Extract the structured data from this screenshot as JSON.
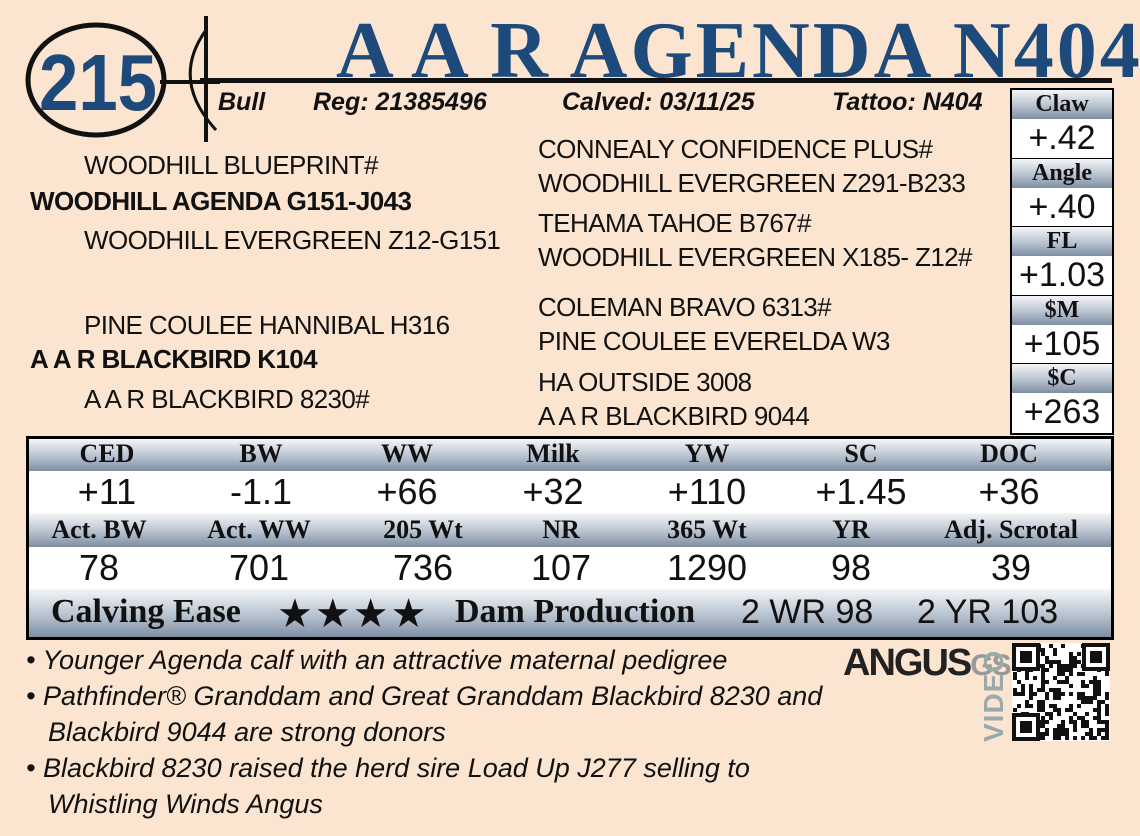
{
  "lot": "215",
  "name": "A A R AGENDA N404",
  "info": {
    "sex": "Bull",
    "reg": "Reg: 21385496",
    "calved": "Calved: 03/11/25",
    "tattoo": "Tattoo: N404"
  },
  "pedigree": {
    "sire_sire": "WOODHILL BLUEPRINT#",
    "sire": "WOODHILL AGENDA G151-J043",
    "sire_dam": "WOODHILL EVERGREEN Z12-G151",
    "dam_sire": "PINE COULEE HANNIBAL H316",
    "dam": "A A R BLACKBIRD K104",
    "dam_dam": "A A R BLACKBIRD 8230#",
    "fourth": [
      "CONNEALY CONFIDENCE PLUS#",
      "WOODHILL EVERGREEN Z291-B233",
      "TEHAMA TAHOE B767#",
      "WOODHILL EVERGREEN X185- Z12#",
      "COLEMAN BRAVO 6313#",
      "PINE COULEE EVERELDA W3",
      "HA OUTSIDE 3008",
      "A A R BLACKBIRD 9044"
    ]
  },
  "side_epds": [
    {
      "label": "Claw",
      "value": "+.42"
    },
    {
      "label": "Angle",
      "value": "+.40"
    },
    {
      "label": "FL",
      "value": "+1.03"
    },
    {
      "label": "$M",
      "value": "+105"
    },
    {
      "label": "$C",
      "value": "+263"
    }
  ],
  "epds": {
    "labels": [
      "CED",
      "BW",
      "WW",
      "Milk",
      "YW",
      "SC",
      "DOC"
    ],
    "values": [
      "+11",
      "-1.1",
      "+66",
      "+32",
      "+110",
      "+1.45",
      "+36"
    ]
  },
  "actuals": {
    "labels": [
      "Act. BW",
      "Act. WW",
      "205 Wt",
      "NR",
      "365 Wt",
      "YR",
      "Adj. Scrotal"
    ],
    "values": [
      "78",
      "701",
      "736",
      "107",
      "1290",
      "98",
      "39"
    ]
  },
  "calving_ease": {
    "label": "Calving Ease",
    "stars": "★★★★"
  },
  "dam_production": {
    "label": "Dam Production",
    "values": [
      "2 WR 98",
      "2 YR 103"
    ]
  },
  "notes": [
    "Younger Agenda calf with an attractive maternal pedigree",
    "Pathfinder®  Granddam and Great Granddam Blackbird 8230 and Blackbird 9044 are strong donors",
    "Blackbird 8230 raised the herd sire Load Up J277 selling to Whistling Winds Angus"
  ],
  "logo": {
    "name": "ANGUS",
    "suffix": "GS",
    "video": "VIDEO"
  }
}
